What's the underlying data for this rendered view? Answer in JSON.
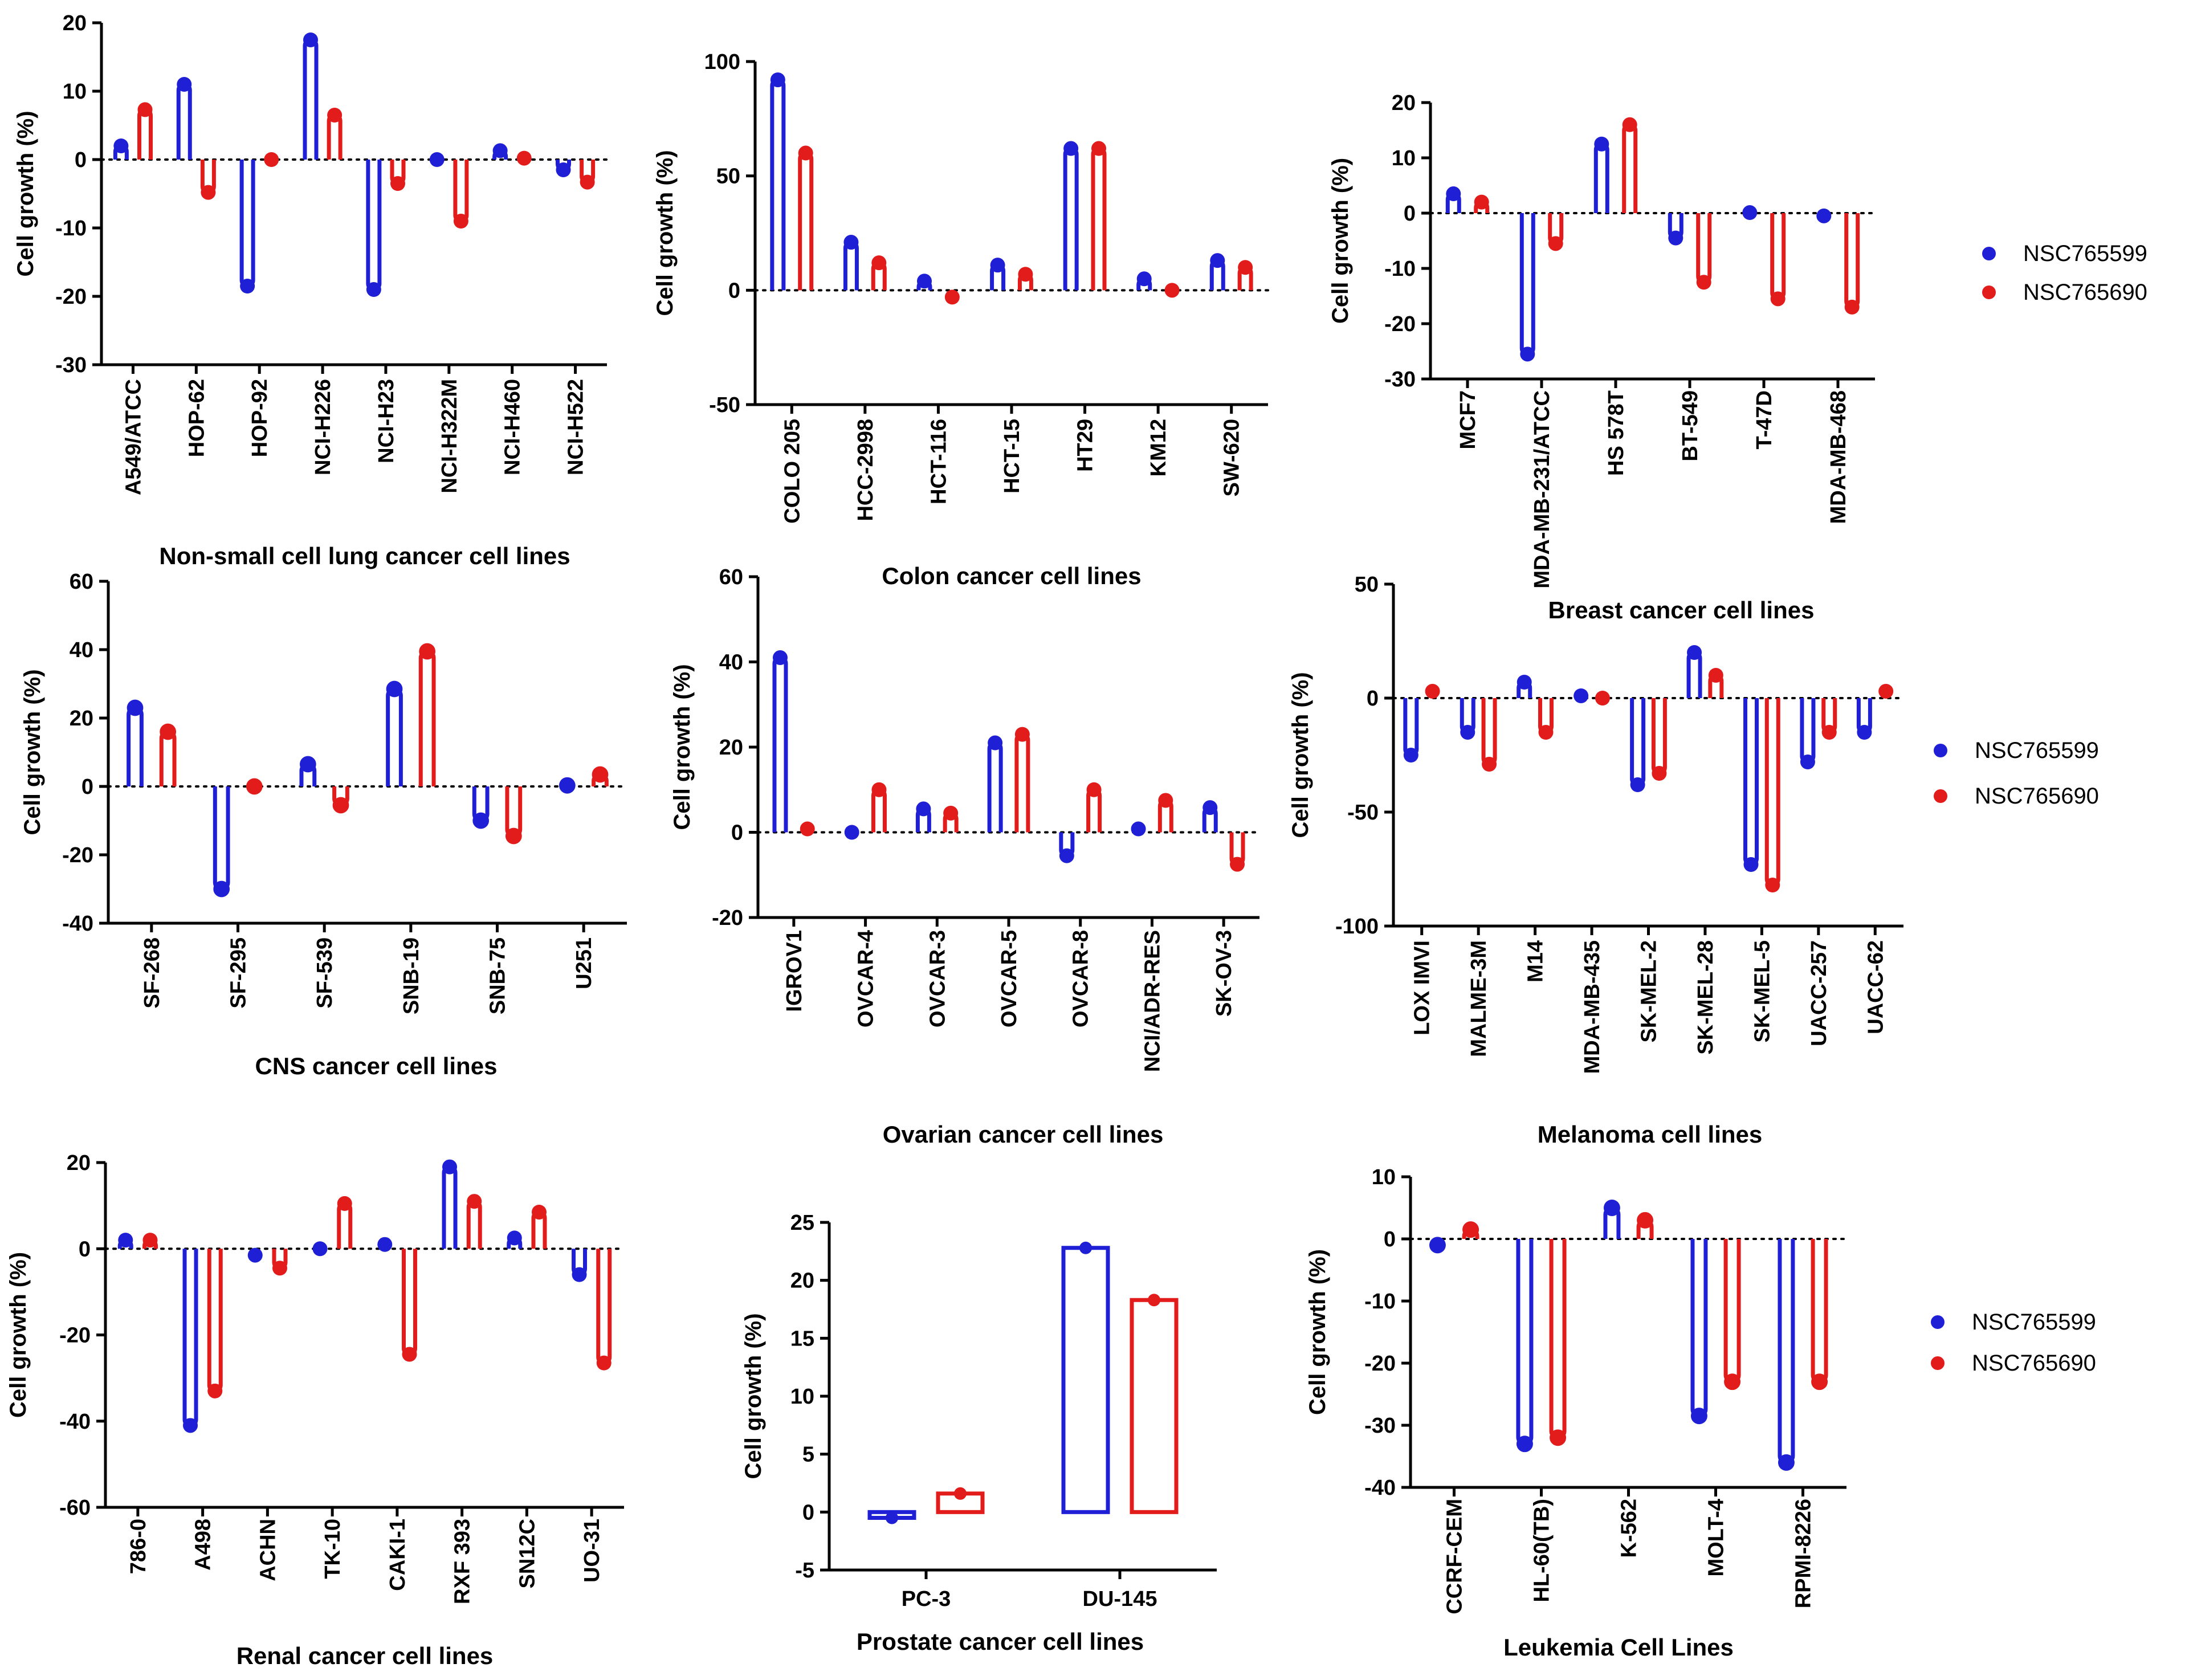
{
  "colors": {
    "NSC765599": "#1f1fd6",
    "NSC765690": "#e21b1b"
  },
  "chart_data": [
    {
      "type": "bar",
      "title": "Non-small cell lung cancer cell lines",
      "ylabel": "Cell growth (%)",
      "ylim": [
        -30,
        20
      ],
      "yticks": [
        20,
        10,
        0,
        -10,
        -20,
        -30
      ],
      "categories": [
        "A549/ATCC",
        "HOP-62",
        "HOP-92",
        "NCI-H226",
        "NCI-H23",
        "NCI-H322M",
        "NCI-H460",
        "NCI-H522"
      ],
      "series": [
        {
          "name": "NSC765599",
          "values": [
            2,
            11,
            -18.5,
            17.5,
            -19,
            0,
            1.3,
            -1.5
          ]
        },
        {
          "name": "NSC765690",
          "values": [
            7.3,
            -4.8,
            0,
            6.5,
            -3.5,
            -9,
            0.2,
            -3.3
          ]
        }
      ]
    },
    {
      "type": "bar",
      "title": "Colon cancer cell lines",
      "ylabel": "Cell growth (%)",
      "ylim": [
        -50,
        100
      ],
      "yticks": [
        100,
        50,
        0,
        -50
      ],
      "categories": [
        "COLO 205",
        "HCC-2998",
        "HCT-116",
        "HCT-15",
        "HT29",
        "KM12",
        "SW-620"
      ],
      "series": [
        {
          "name": "NSC765599",
          "values": [
            92,
            21,
            4,
            11,
            62,
            5,
            13
          ]
        },
        {
          "name": "NSC765690",
          "values": [
            60,
            12,
            -3,
            7,
            62,
            0,
            10
          ]
        }
      ]
    },
    {
      "type": "bar",
      "title": "Breast cancer cell lines",
      "ylabel": "Cell growth (%)",
      "ylim": [
        -30,
        20
      ],
      "yticks": [
        20,
        10,
        0,
        -10,
        -20,
        -30
      ],
      "categories": [
        "MCF7",
        "MDA-MB-231/ATCC",
        "HS 578T",
        "BT-549",
        "T-47D",
        "MDA-MB-468"
      ],
      "series": [
        {
          "name": "NSC765599",
          "values": [
            3.5,
            -25.5,
            12.5,
            -4.5,
            0.1,
            -0.5
          ]
        },
        {
          "name": "NSC765690",
          "values": [
            2,
            -5.5,
            16,
            -12.5,
            -15.5,
            -17
          ]
        }
      ]
    },
    {
      "type": "bar",
      "title": "CNS cancer cell lines",
      "ylabel": "Cell growth (%)",
      "ylim": [
        -40,
        60
      ],
      "yticks": [
        60,
        40,
        20,
        0,
        -20,
        -40
      ],
      "categories": [
        "SF-268",
        "SF-295",
        "SF-539",
        "SNB-19",
        "SNB-75",
        "U251"
      ],
      "series": [
        {
          "name": "NSC765599",
          "values": [
            23,
            -30,
            6.5,
            28.5,
            -10,
            0.3
          ]
        },
        {
          "name": "NSC765690",
          "values": [
            16,
            0,
            -5.5,
            39.5,
            -14.5,
            3.5
          ]
        }
      ]
    },
    {
      "type": "bar",
      "title": "Ovarian cancer cell lines",
      "ylabel": "Cell growth (%)",
      "ylim": [
        -20,
        60
      ],
      "yticks": [
        60,
        40,
        20,
        0,
        -20
      ],
      "categories": [
        "IGROV1",
        "OVCAR-4",
        "OVCAR-3",
        "OVCAR-5",
        "OVCAR-8",
        "NCI/ADR-RES",
        "SK-OV-3"
      ],
      "series": [
        {
          "name": "NSC765599",
          "values": [
            41,
            0,
            5.5,
            21,
            -5.5,
            0.8,
            5.8
          ]
        },
        {
          "name": "NSC765690",
          "values": [
            0.8,
            10,
            4.5,
            23,
            10,
            7.5,
            -7.5
          ]
        }
      ]
    },
    {
      "type": "bar",
      "title": "Melanoma cell lines",
      "ylabel": "Cell growth (%)",
      "ylim": [
        -100,
        50
      ],
      "yticks": [
        50,
        0,
        -50,
        -100
      ],
      "categories": [
        "LOX IMVI",
        "MALME-3M",
        "M14",
        "MDA-MB-435",
        "SK-MEL-2",
        "SK-MEL-28",
        "SK-MEL-5",
        "UACC-257",
        "UACC-62"
      ],
      "series": [
        {
          "name": "NSC765599",
          "values": [
            -25,
            -15,
            7,
            1,
            -38,
            20,
            -73,
            -28,
            -15
          ]
        },
        {
          "name": "NSC765690",
          "values": [
            3,
            -29,
            -15,
            0,
            -33,
            10,
            -82,
            -15,
            3
          ]
        }
      ]
    },
    {
      "type": "bar",
      "title": "Renal cancer cell lines",
      "ylabel": "Cell growth (%)",
      "ylim": [
        -60,
        20
      ],
      "yticks": [
        20,
        0,
        -20,
        -40,
        -60
      ],
      "categories": [
        "786-0",
        "A498",
        "ACHN",
        "TK-10",
        "CAKI-1",
        "RXF 393",
        "SN12C",
        "UO-31"
      ],
      "series": [
        {
          "name": "NSC765599",
          "values": [
            2,
            -41,
            -1.5,
            0,
            1,
            19,
            2.5,
            -6
          ]
        },
        {
          "name": "NSC765690",
          "values": [
            2,
            -33,
            -4.5,
            10.5,
            -24.5,
            11,
            8.5,
            -26.5
          ]
        }
      ]
    },
    {
      "type": "bar",
      "title": "Prostate cancer cell lines",
      "ylabel": "Cell growth (%)",
      "ylim": [
        -5,
        25
      ],
      "yticks": [
        25,
        20,
        15,
        10,
        5,
        0,
        -5
      ],
      "categories": [
        "PC-3",
        "DU-145"
      ],
      "series": [
        {
          "name": "NSC765599",
          "values": [
            -0.5,
            22.8
          ]
        },
        {
          "name": "NSC765690",
          "values": [
            1.6,
            18.3
          ]
        }
      ]
    },
    {
      "type": "bar",
      "title": "Leukemia Cell Lines",
      "ylabel": "Cell growth (%)",
      "ylim": [
        -40,
        10
      ],
      "yticks": [
        10,
        0,
        -10,
        -20,
        -30,
        -40
      ],
      "categories": [
        "CCRF-CEM",
        "HL-60(TB)",
        "K-562",
        "MOLT-4",
        "RPMI-8226"
      ],
      "series": [
        {
          "name": "NSC765599",
          "values": [
            -1,
            -33,
            5,
            -28.5,
            -36
          ]
        },
        {
          "name": "NSC765690",
          "values": [
            1.5,
            -32,
            3,
            -23,
            -23
          ]
        }
      ]
    }
  ],
  "legends": [
    {
      "items": [
        "NSC765599",
        "NSC765690"
      ]
    },
    {
      "items": [
        "NSC765599",
        "NSC765690"
      ]
    },
    {
      "items": [
        "NSC765599",
        "NSC765690"
      ]
    }
  ]
}
